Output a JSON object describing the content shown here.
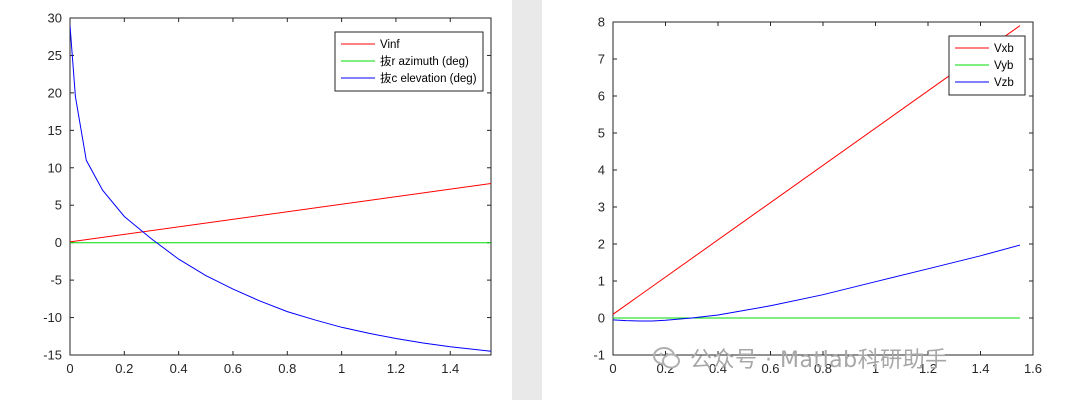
{
  "chart_data": [
    {
      "type": "line",
      "title": "",
      "xlabel": "",
      "ylabel": "",
      "xlim": [
        0,
        1.55
      ],
      "ylim": [
        -15,
        30
      ],
      "xticks": [
        0,
        0.2,
        0.4,
        0.6,
        0.8,
        1,
        1.2,
        1.4
      ],
      "xtick_labels": [
        "0",
        "0.2",
        "0.4",
        "0.6",
        "0.8",
        "1",
        "1.2",
        "1.4"
      ],
      "yticks": [
        -15,
        -10,
        -5,
        0,
        5,
        10,
        15,
        20,
        25,
        30
      ],
      "ytick_labels": [
        "-15",
        "-10",
        "-5",
        "0",
        "5",
        "10",
        "15",
        "20",
        "25",
        "30"
      ],
      "grid": false,
      "legend_position": "top-right",
      "series": [
        {
          "name": "Vinf",
          "color": "#ff0000",
          "x": [
            0,
            1.55
          ],
          "y": [
            0.1,
            7.9
          ]
        },
        {
          "name": "抜r azimuth (deg)",
          "color": "#00dd00",
          "x": [
            0,
            1.55
          ],
          "y": [
            0,
            0
          ]
        },
        {
          "name": "抜c elevation (deg)",
          "color": "#0000ff",
          "x": [
            0,
            0.02,
            0.06,
            0.12,
            0.2,
            0.3,
            0.4,
            0.5,
            0.6,
            0.7,
            0.8,
            0.9,
            1.0,
            1.1,
            1.2,
            1.3,
            1.4,
            1.55
          ],
          "y": [
            29,
            19.5,
            11,
            7,
            3.5,
            0.5,
            -2.2,
            -4.4,
            -6.2,
            -7.8,
            -9.2,
            -10.3,
            -11.3,
            -12.1,
            -12.8,
            -13.4,
            -13.9,
            -14.5
          ]
        }
      ]
    },
    {
      "type": "line",
      "title": "",
      "xlabel": "",
      "ylabel": "",
      "xlim": [
        0,
        1.6
      ],
      "ylim": [
        -1,
        8
      ],
      "xticks": [
        0,
        0.2,
        0.4,
        0.6,
        0.8,
        1,
        1.2,
        1.4,
        1.6
      ],
      "xtick_labels": [
        "0",
        "0.2",
        "0.4",
        "0.6",
        "0.8",
        "1",
        "1.2",
        "1.4",
        "1.6"
      ],
      "yticks": [
        -1,
        0,
        1,
        2,
        3,
        4,
        5,
        6,
        7,
        8
      ],
      "ytick_labels": [
        "-1",
        "0",
        "1",
        "2",
        "3",
        "4",
        "5",
        "6",
        "7",
        "8"
      ],
      "grid": false,
      "legend_position": "top-right",
      "series": [
        {
          "name": "Vxb",
          "color": "#ff0000",
          "x": [
            0,
            1.55
          ],
          "y": [
            0.1,
            7.9
          ]
        },
        {
          "name": "Vyb",
          "color": "#00dd00",
          "x": [
            0,
            1.55
          ],
          "y": [
            0,
            0
          ]
        },
        {
          "name": "Vzb",
          "color": "#0000ff",
          "x": [
            0,
            0.05,
            0.1,
            0.15,
            0.2,
            0.3,
            0.4,
            0.6,
            0.8,
            1.0,
            1.2,
            1.4,
            1.55
          ],
          "y": [
            -0.05,
            -0.07,
            -0.08,
            -0.08,
            -0.06,
            0.0,
            0.08,
            0.33,
            0.63,
            0.98,
            1.33,
            1.68,
            1.97
          ]
        }
      ]
    }
  ],
  "watermark": {
    "text": "公众号 · Matlab科研助手",
    "icon": "wechat-icon"
  }
}
